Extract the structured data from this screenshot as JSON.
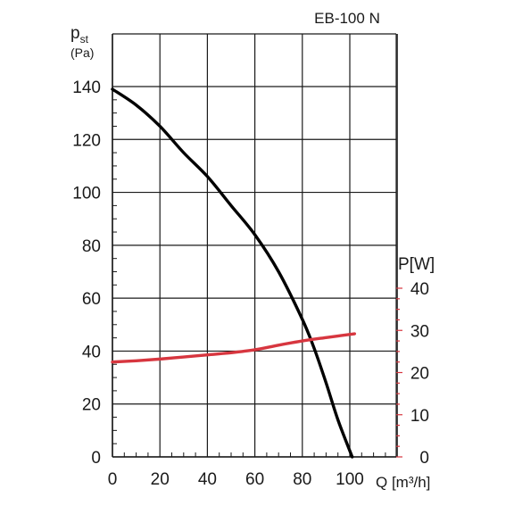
{
  "chart_data": {
    "type": "line",
    "title": "EB-100 N",
    "xlabel": "Q [m³/h]",
    "ylabel_main": "p",
    "ylabel_sub": "st",
    "ylabel_unit": "(Pa)",
    "y2label": "P[W]",
    "xlim": [
      0,
      120
    ],
    "ylim": [
      0,
      140
    ],
    "y2lim": [
      0,
      40
    ],
    "x_ticks": [
      0,
      20,
      40,
      60,
      80,
      100
    ],
    "y_ticks": [
      0,
      20,
      40,
      60,
      80,
      100,
      120,
      140
    ],
    "y2_ticks": [
      0,
      10,
      20,
      30,
      40
    ],
    "grid": true,
    "colors": {
      "pressure": "#000000",
      "power": "#d7363f",
      "grid": "#1a1a1a"
    },
    "series": [
      {
        "axis": "left",
        "x": [
          0,
          10,
          20,
          30,
          40,
          50,
          60,
          70,
          80,
          85,
          90,
          95,
          101
        ],
        "values": [
          139,
          133,
          125,
          115,
          106,
          95,
          84,
          70,
          52,
          41,
          28,
          14,
          0
        ]
      },
      {
        "axis": "right",
        "x": [
          0,
          10,
          20,
          30,
          40,
          50,
          60,
          70,
          80,
          90,
          102
        ],
        "values": [
          22.5,
          22.8,
          23.2,
          23.7,
          24.2,
          24.7,
          25.4,
          26.5,
          27.5,
          28.3,
          29.2
        ]
      }
    ]
  }
}
